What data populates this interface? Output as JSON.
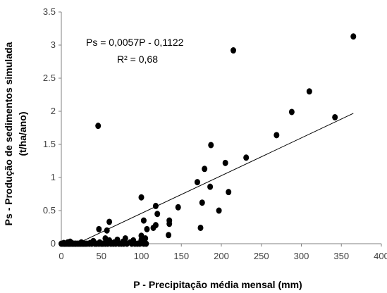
{
  "chart_data": {
    "type": "scatter",
    "xlabel": "P - Precipitação média mensal (mm)",
    "ylabel_line1": "Ps - Produção de sedimentos simulada",
    "ylabel_line2": "(t/ha/ano)",
    "xlim": [
      0,
      400
    ],
    "ylim": [
      0,
      3.5
    ],
    "x_ticks": [
      "0",
      "50",
      "100",
      "150",
      "200",
      "250",
      "300",
      "350",
      "400"
    ],
    "y_ticks": [
      "0",
      "0.5",
      "1",
      "1.5",
      "2",
      "2.5",
      "3",
      "3.5"
    ],
    "grid": false,
    "annotations": {
      "equation": "Ps = 0,0057P - 0,1122",
      "r2": "R² = 0,68"
    },
    "trendline": {
      "slope": 0.0057,
      "intercept": -0.1122,
      "x_start": 19.7,
      "x_end": 365
    },
    "points": [
      [
        0,
        0
      ],
      [
        2,
        0
      ],
      [
        4,
        0
      ],
      [
        5,
        0
      ],
      [
        7,
        0
      ],
      [
        9,
        0
      ],
      [
        10,
        0
      ],
      [
        12,
        0
      ],
      [
        14,
        0
      ],
      [
        15,
        0
      ],
      [
        17,
        0
      ],
      [
        18,
        0
      ],
      [
        20,
        0
      ],
      [
        22,
        0
      ],
      [
        24,
        0
      ],
      [
        26,
        0
      ],
      [
        28,
        0
      ],
      [
        30,
        0
      ],
      [
        32,
        0
      ],
      [
        35,
        0
      ],
      [
        38,
        0
      ],
      [
        42,
        0
      ],
      [
        44,
        0
      ],
      [
        47,
        0
      ],
      [
        50,
        0
      ],
      [
        52,
        0
      ],
      [
        55,
        0
      ],
      [
        58,
        0
      ],
      [
        62,
        0
      ],
      [
        65,
        0
      ],
      [
        68,
        0
      ],
      [
        72,
        0
      ],
      [
        75,
        0
      ],
      [
        78,
        0
      ],
      [
        82,
        0
      ],
      [
        88,
        0
      ],
      [
        92,
        0
      ],
      [
        95,
        0
      ],
      [
        98,
        0
      ],
      [
        103,
        0
      ],
      [
        106,
        0
      ],
      [
        3,
        0.01
      ],
      [
        8,
        0.02
      ],
      [
        13,
        0.01
      ],
      [
        25,
        0.02
      ],
      [
        36,
        0.01
      ],
      [
        48,
        0.02
      ],
      [
        57,
        0.03
      ],
      [
        66,
        0.02
      ],
      [
        77,
        0.03
      ],
      [
        86,
        0.02
      ],
      [
        99,
        0.02
      ],
      [
        11,
        0.03
      ],
      [
        40,
        0.04
      ],
      [
        60,
        0.05
      ],
      [
        70,
        0.06
      ],
      [
        80,
        0.08
      ],
      [
        90,
        0.05
      ],
      [
        100,
        0.06
      ],
      [
        105,
        0.08
      ],
      [
        55,
        0.08
      ],
      [
        47,
        0.22
      ],
      [
        57,
        0.2
      ],
      [
        60,
        0.33
      ],
      [
        100,
        0.12
      ],
      [
        107,
        0.22
      ],
      [
        115,
        0.24
      ],
      [
        118,
        0.28
      ],
      [
        120,
        0.45
      ],
      [
        103,
        0.35
      ],
      [
        135,
        0.3
      ],
      [
        135,
        0.35
      ],
      [
        134,
        0.13
      ],
      [
        46,
        1.78
      ],
      [
        100,
        0.7
      ],
      [
        118,
        0.57
      ],
      [
        146,
        0.55
      ],
      [
        174,
        0.24
      ],
      [
        176,
        0.62
      ],
      [
        170,
        0.93
      ],
      [
        179,
        1.13
      ],
      [
        186,
        0.86
      ],
      [
        187,
        1.49
      ],
      [
        197,
        0.5
      ],
      [
        205,
        1.22
      ],
      [
        209,
        0.78
      ],
      [
        215,
        2.92
      ],
      [
        231,
        1.3
      ],
      [
        269,
        1.64
      ],
      [
        288,
        1.99
      ],
      [
        310,
        2.3
      ],
      [
        342,
        1.91
      ],
      [
        365,
        3.13
      ]
    ]
  }
}
